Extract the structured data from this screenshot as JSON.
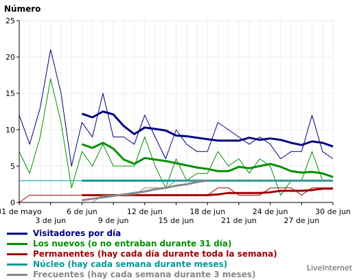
{
  "chart_data": {
    "type": "line",
    "ylabel": "Número",
    "ylim": [
      0,
      25
    ],
    "yticks": [
      0,
      5,
      10,
      15,
      20,
      25
    ],
    "x_range": [
      0,
      30
    ],
    "x_ticks": [
      {
        "x": 0,
        "row": 0,
        "label": "31 de mayo"
      },
      {
        "x": 3,
        "row": 1,
        "label": "3 de jun"
      },
      {
        "x": 6,
        "row": 0,
        "label": "6 de jun"
      },
      {
        "x": 9,
        "row": 1,
        "label": "9 de jun"
      },
      {
        "x": 12,
        "row": 0,
        "label": "12 de jun"
      },
      {
        "x": 15,
        "row": 1,
        "label": "15 de jun"
      },
      {
        "x": 18,
        "row": 0,
        "label": "18 de jun"
      },
      {
        "x": 21,
        "row": 1,
        "label": "21 de jun"
      },
      {
        "x": 24,
        "row": 0,
        "label": "24 de jun"
      },
      {
        "x": 27,
        "row": 1,
        "label": "27 de jun"
      },
      {
        "x": 30,
        "row": 0,
        "label": "30 de jun"
      }
    ],
    "grid": true,
    "series": [
      {
        "name": "Visitadores por día",
        "color": "#00007f",
        "width": 1,
        "x": [
          0,
          1,
          2,
          3,
          4,
          5,
          6,
          7,
          8,
          9,
          10,
          11,
          12,
          13,
          14,
          15,
          16,
          17,
          18,
          19,
          20,
          21,
          22,
          23,
          24,
          25,
          26,
          27,
          28,
          29,
          30
        ],
        "values": [
          12,
          8,
          13,
          21,
          15,
          5,
          11,
          9,
          15,
          9,
          9,
          8,
          12,
          9,
          6,
          10,
          8,
          7,
          7,
          11,
          10,
          9,
          8,
          9,
          8,
          6,
          7,
          7,
          12,
          7,
          6
        ]
      },
      {
        "name": "Visitadores por día (media móvil)",
        "color": "#00007f",
        "width": 3,
        "x": [
          6,
          7,
          8,
          9,
          10,
          11,
          12,
          13,
          14,
          15,
          16,
          17,
          18,
          19,
          20,
          21,
          22,
          23,
          24,
          25,
          26,
          27,
          28,
          29,
          30
        ],
        "values": [
          12.2,
          11.7,
          12.5,
          12.1,
          10.5,
          9.4,
          10.3,
          10.1,
          9.9,
          9.2,
          9.1,
          8.9,
          8.7,
          8.5,
          8.5,
          8.5,
          8.9,
          8.6,
          8.8,
          8.6,
          8.2,
          7.9,
          8.4,
          8.2,
          7.7
        ]
      },
      {
        "name": "Los nuevos (o no entraban durante 31 día)",
        "color": "#009000",
        "width": 1,
        "x": [
          0,
          1,
          2,
          3,
          4,
          5,
          6,
          7,
          8,
          9,
          10,
          11,
          12,
          13,
          14,
          15,
          16,
          17,
          18,
          19,
          20,
          21,
          22,
          23,
          24,
          25,
          26,
          27,
          28,
          29,
          30
        ],
        "values": [
          7,
          4,
          9,
          17,
          11,
          2,
          7,
          5,
          8,
          5,
          5,
          5,
          9,
          5,
          2,
          6,
          3,
          4,
          4,
          7,
          5,
          6,
          4,
          6,
          5,
          1,
          3,
          3,
          7,
          3,
          3
        ]
      },
      {
        "name": "Los nuevos (media móvil)",
        "color": "#009000",
        "width": 3,
        "x": [
          6,
          7,
          8,
          9,
          10,
          11,
          12,
          13,
          14,
          15,
          16,
          17,
          18,
          19,
          20,
          21,
          22,
          23,
          24,
          25,
          26,
          27,
          28,
          29,
          30
        ],
        "values": [
          8,
          7.5,
          8.2,
          7.4,
          5.9,
          5.3,
          6.1,
          5.9,
          5.7,
          5.4,
          5.1,
          4.8,
          4.6,
          4.3,
          4.3,
          4.9,
          4.7,
          5.0,
          5.3,
          4.9,
          4.3,
          4.1,
          4.2,
          4.0,
          3.5
        ]
      },
      {
        "name": "Permanentes (hay cada día durante toda la semana)",
        "color": "#a00000",
        "width": 1,
        "x": [
          0,
          1,
          2,
          3,
          4,
          5,
          6,
          7,
          8,
          9,
          10,
          11,
          12,
          13,
          14,
          15,
          16,
          17,
          18,
          19,
          20,
          21,
          22,
          23,
          24,
          25,
          26,
          27,
          28,
          29,
          30
        ],
        "values": [
          0,
          1,
          1,
          1,
          1,
          1,
          1,
          1,
          1,
          1,
          1,
          1,
          1,
          1,
          1,
          1,
          1,
          1,
          1,
          2,
          2,
          1,
          1,
          1,
          2,
          2,
          2,
          1,
          2,
          2,
          2
        ]
      },
      {
        "name": "Permanentes (media móvil)",
        "color": "#a00000",
        "width": 3,
        "x": [
          6,
          7,
          8,
          9,
          10,
          11,
          12,
          13,
          14,
          15,
          16,
          17,
          18,
          19,
          20,
          21,
          22,
          23,
          24,
          25,
          26,
          27,
          28,
          29,
          30
        ],
        "values": [
          1,
          1,
          1,
          1,
          1,
          1,
          1,
          1,
          1,
          1,
          1,
          1,
          1,
          1.1,
          1.3,
          1.3,
          1.3,
          1.3,
          1.4,
          1.6,
          1.6,
          1.6,
          1.7,
          1.9,
          1.9
        ]
      },
      {
        "name": "Núcleo (hay cada semana durante meses)",
        "color": "#009999",
        "width": 1,
        "x": [
          0,
          30
        ],
        "values": [
          3,
          3
        ]
      },
      {
        "name": "Núcleo (media móvil)",
        "color": "#009999",
        "width": 3,
        "x": [
          6,
          30
        ],
        "values": [
          3,
          3
        ]
      },
      {
        "name": "Frecuentes (hay cada semana durante 3 meses)",
        "color": "#888888",
        "width": 1,
        "x": [
          6,
          7,
          8,
          9,
          10,
          11,
          12,
          13,
          14,
          15,
          16,
          17,
          18,
          19,
          20,
          21,
          22,
          23,
          24,
          25,
          26,
          27,
          28,
          29,
          30
        ],
        "values": [
          0,
          0,
          1,
          1,
          1,
          1,
          2,
          2,
          2,
          3,
          3,
          3,
          3,
          3,
          3,
          3,
          3,
          3,
          3,
          3,
          3,
          3,
          3,
          3,
          3
        ]
      },
      {
        "name": "Frecuentes (media móvil)",
        "color": "#888888",
        "width": 3,
        "x": [
          6,
          7,
          8,
          9,
          10,
          11,
          12,
          13,
          14,
          15,
          16,
          17,
          18
        ],
        "values": [
          0.3,
          0.5,
          0.7,
          0.9,
          1.1,
          1.3,
          1.5,
          1.8,
          2.0,
          2.3,
          2.5,
          2.8,
          3.0
        ]
      }
    ]
  },
  "legend": [
    {
      "label": "Visitadores por día",
      "color": "#00007f",
      "text_color": "#00007f"
    },
    {
      "label": "Los nuevos (o no entraban durante 31 día)",
      "color": "#009000",
      "text_color": "#009000"
    },
    {
      "label": "Permanentes (hay cada día durante toda la semana)",
      "color": "#a00000",
      "text_color": "#a00000"
    },
    {
      "label": "Núcleo (hay cada semana durante meses)",
      "color": "#009999",
      "text_color": "#009999"
    },
    {
      "label": "Frecuentes (hay cada semana durante 3 meses)",
      "color": "#888888",
      "text_color": "#888888"
    }
  ],
  "footer": "LiveInternet"
}
